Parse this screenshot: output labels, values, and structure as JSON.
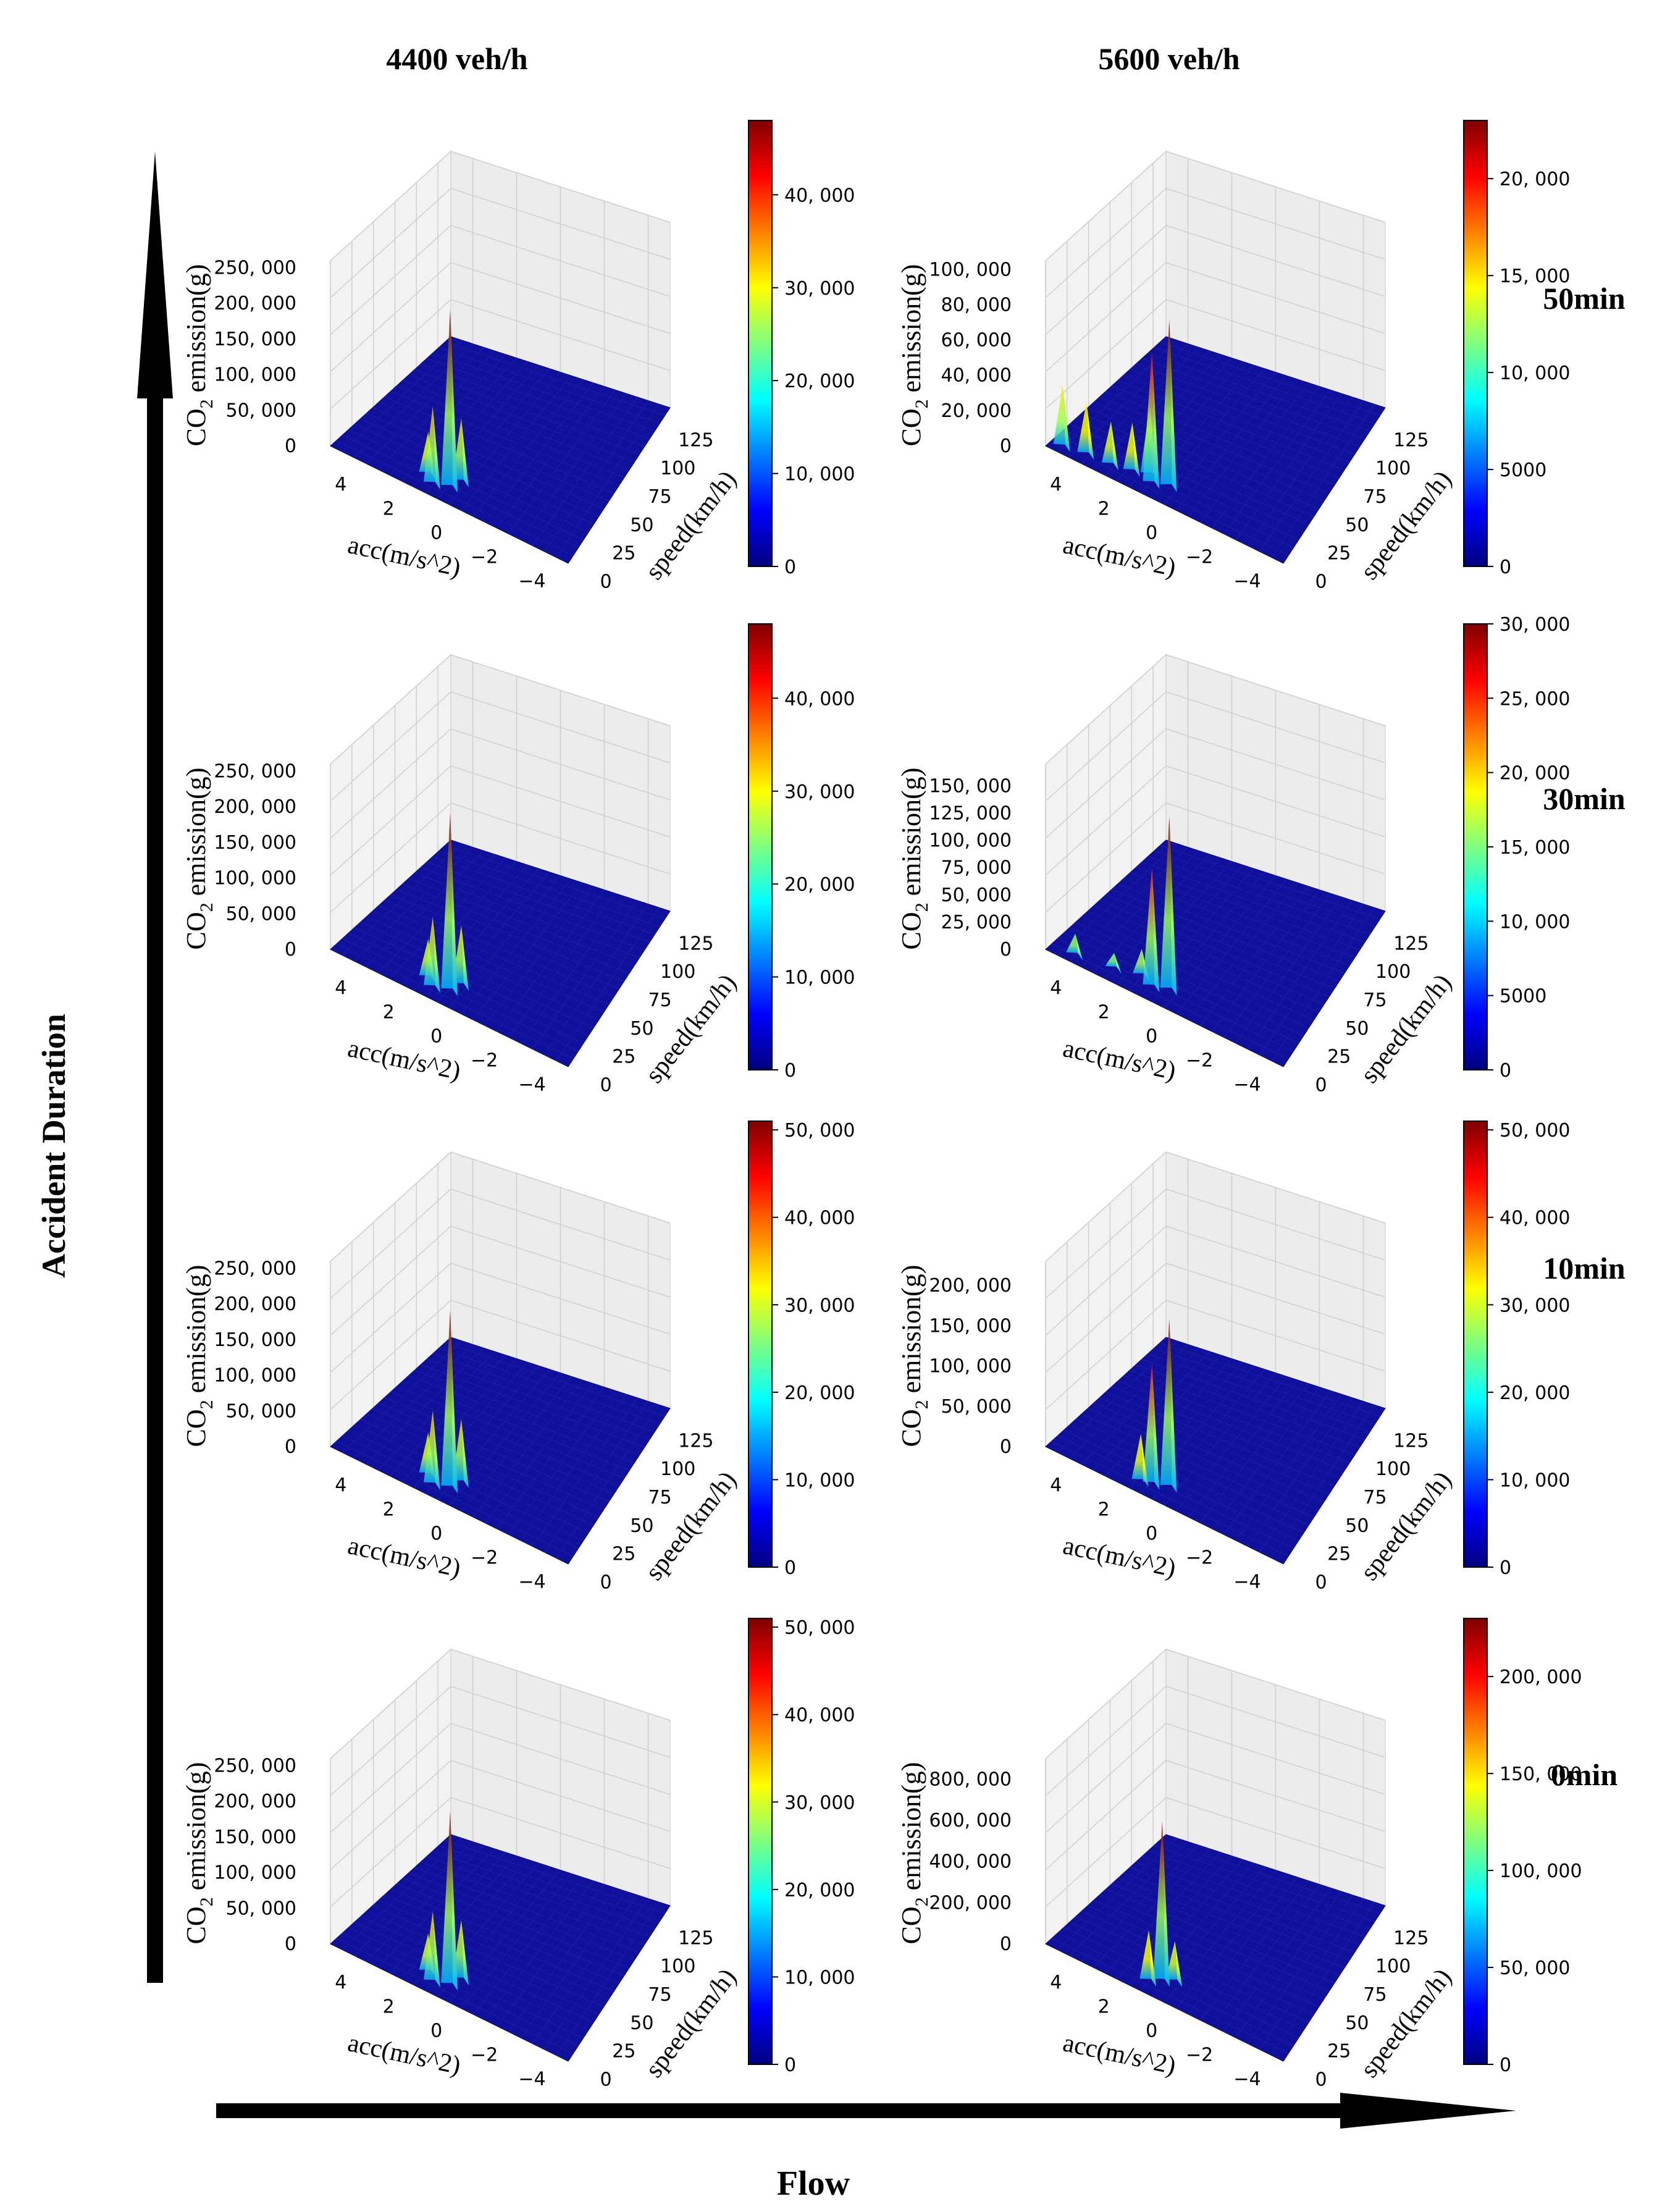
{
  "figure": {
    "column_headers": [
      "4400 veh/h",
      "5600 veh/h"
    ],
    "row_labels": [
      "50min",
      "30min",
      "10min",
      "0min"
    ],
    "y_axis_arrow_label": "Accident Duration",
    "x_axis_arrow_label": "Flow"
  },
  "axis_text": {
    "zlabel_prefix": "CO",
    "zlabel_sub": "2",
    "zlabel_suffix": " emission(g)",
    "xlabel": "acc(m/s^2)",
    "ylabel": "speed(km/h)",
    "acc_ticks": [
      "4",
      "2",
      "0",
      "−2",
      "−4"
    ],
    "speed_ticks": [
      "0",
      "25",
      "50",
      "75",
      "100",
      "125"
    ]
  },
  "colors": {
    "surface_base": "#10119a",
    "colormap": [
      "#00007f",
      "#0000ff",
      "#007fff",
      "#00ffff",
      "#7fff7f",
      "#ffff00",
      "#ff7f00",
      "#ff0000",
      "#7f0000"
    ],
    "pane": "#f2f2f2",
    "grid": "#cfcfcf"
  },
  "chart_data": [
    {
      "type": "surface3d",
      "title": "",
      "flow": "4400 veh/h",
      "duration": "50min",
      "xlabel": "acc(m/s^2)",
      "ylabel": "speed(km/h)",
      "zlabel": "CO2 emission(g)",
      "xlim": [
        -5,
        5
      ],
      "ylim": [
        0,
        140
      ],
      "zlim": [
        0,
        260000
      ],
      "z_ticks": [
        "0",
        "50, 000",
        "100, 000",
        "150, 000",
        "200, 000",
        "250, 000"
      ],
      "colorbar_ticks": [
        "0",
        "10, 000",
        "20, 000",
        "30, 000",
        "40, 000"
      ],
      "colorbar_max": 48000,
      "peaks": [
        {
          "acc": 0.4,
          "speed": 12,
          "z": 250000
        },
        {
          "acc": 1.0,
          "speed": 8,
          "z": 110000
        },
        {
          "acc": 0.2,
          "speed": 20,
          "z": 90000
        },
        {
          "acc": 1.4,
          "speed": 14,
          "z": 60000
        }
      ]
    },
    {
      "type": "surface3d",
      "title": "",
      "flow": "5600 veh/h",
      "duration": "50min",
      "xlabel": "acc(m/s^2)",
      "ylabel": "speed(km/h)",
      "zlabel": "CO2 emission(g)",
      "xlim": [
        -5,
        5
      ],
      "ylim": [
        0,
        140
      ],
      "zlim": [
        0,
        105000
      ],
      "z_ticks": [
        "0",
        "20, 000",
        "40, 000",
        "60, 000",
        "80, 000",
        "100, 000"
      ],
      "colorbar_ticks": [
        "0",
        "5000",
        "10, 000",
        "15, 000",
        "20, 000"
      ],
      "colorbar_max": 23000,
      "peaks": [
        {
          "acc": 0.3,
          "speed": 14,
          "z": 95000
        },
        {
          "acc": 0.9,
          "speed": 10,
          "z": 75000
        },
        {
          "acc": 4.5,
          "speed": 5,
          "z": 35000
        },
        {
          "acc": 3.6,
          "speed": 8,
          "z": 30000
        },
        {
          "acc": 2.6,
          "speed": 9,
          "z": 25000
        },
        {
          "acc": 1.8,
          "speed": 12,
          "z": 28000
        },
        {
          "acc": 1.2,
          "speed": 16,
          "z": 40000
        }
      ]
    },
    {
      "type": "surface3d",
      "title": "",
      "flow": "4400 veh/h",
      "duration": "30min",
      "xlabel": "acc(m/s^2)",
      "ylabel": "speed(km/h)",
      "zlabel": "CO2 emission(g)",
      "xlim": [
        -5,
        5
      ],
      "ylim": [
        0,
        140
      ],
      "zlim": [
        0,
        260000
      ],
      "z_ticks": [
        "0",
        "50, 000",
        "100, 000",
        "150, 000",
        "200, 000",
        "250, 000"
      ],
      "colorbar_ticks": [
        "0",
        "10, 000",
        "20, 000",
        "30, 000",
        "40, 000"
      ],
      "colorbar_max": 48000,
      "peaks": [
        {
          "acc": 0.4,
          "speed": 12,
          "z": 250000
        },
        {
          "acc": 1.0,
          "speed": 8,
          "z": 100000
        },
        {
          "acc": 0.2,
          "speed": 20,
          "z": 85000
        },
        {
          "acc": 1.4,
          "speed": 14,
          "z": 55000
        }
      ]
    },
    {
      "type": "surface3d",
      "title": "",
      "flow": "5600 veh/h",
      "duration": "30min",
      "xlabel": "acc(m/s^2)",
      "ylabel": "speed(km/h)",
      "zlabel": "CO2 emission(g)",
      "xlim": [
        -5,
        5
      ],
      "ylim": [
        0,
        140
      ],
      "zlim": [
        0,
        170000
      ],
      "z_ticks": [
        "0",
        "25, 000",
        "50, 000",
        "75, 000",
        "100, 000",
        "125, 000",
        "150, 000"
      ],
      "colorbar_ticks": [
        "0",
        "5000",
        "10, 000",
        "15, 000",
        "20, 000",
        "25, 000",
        "30, 000"
      ],
      "colorbar_max": 30000,
      "peaks": [
        {
          "acc": 0.3,
          "speed": 14,
          "z": 160000
        },
        {
          "acc": 0.9,
          "speed": 10,
          "z": 110000
        },
        {
          "acc": 4.0,
          "speed": 6,
          "z": 20000
        },
        {
          "acc": 2.5,
          "speed": 10,
          "z": 15000
        },
        {
          "acc": 1.5,
          "speed": 15,
          "z": 25000
        }
      ]
    },
    {
      "type": "surface3d",
      "title": "",
      "flow": "4400 veh/h",
      "duration": "10min",
      "xlabel": "acc(m/s^2)",
      "ylabel": "speed(km/h)",
      "zlabel": "CO2 emission(g)",
      "xlim": [
        -5,
        5
      ],
      "ylim": [
        0,
        140
      ],
      "zlim": [
        0,
        260000
      ],
      "z_ticks": [
        "0",
        "50, 000",
        "100, 000",
        "150, 000",
        "200, 000",
        "250, 000"
      ],
      "colorbar_ticks": [
        "0",
        "10, 000",
        "20, 000",
        "30, 000",
        "40, 000",
        "50, 000"
      ],
      "colorbar_max": 51000,
      "peaks": [
        {
          "acc": 0.4,
          "speed": 12,
          "z": 250000
        },
        {
          "acc": 1.0,
          "speed": 8,
          "z": 105000
        },
        {
          "acc": 0.2,
          "speed": 20,
          "z": 90000
        },
        {
          "acc": 1.4,
          "speed": 14,
          "z": 60000
        }
      ]
    },
    {
      "type": "surface3d",
      "title": "",
      "flow": "5600 veh/h",
      "duration": "10min",
      "xlabel": "acc(m/s^2)",
      "ylabel": "speed(km/h)",
      "zlabel": "CO2 emission(g)",
      "xlim": [
        -5,
        5
      ],
      "ylim": [
        0,
        140
      ],
      "zlim": [
        0,
        230000
      ],
      "z_ticks": [
        "0",
        "50, 000",
        "100, 000",
        "150, 000",
        "200, 000"
      ],
      "colorbar_ticks": [
        "0",
        "10, 000",
        "20, 000",
        "30, 000",
        "40, 000",
        "50, 000"
      ],
      "colorbar_max": 51000,
      "peaks": [
        {
          "acc": 0.3,
          "speed": 14,
          "z": 210000
        },
        {
          "acc": 0.9,
          "speed": 10,
          "z": 150000
        },
        {
          "acc": 1.3,
          "speed": 8,
          "z": 60000
        }
      ]
    },
    {
      "type": "surface3d",
      "title": "",
      "flow": "4400 veh/h",
      "duration": "0min",
      "xlabel": "acc(m/s^2)",
      "ylabel": "speed(km/h)",
      "zlabel": "CO2 emission(g)",
      "xlim": [
        -5,
        5
      ],
      "ylim": [
        0,
        140
      ],
      "zlim": [
        0,
        260000
      ],
      "z_ticks": [
        "0",
        "50, 000",
        "100, 000",
        "150, 000",
        "200, 000",
        "250, 000"
      ],
      "colorbar_ticks": [
        "0",
        "10, 000",
        "20, 000",
        "30, 000",
        "40, 000",
        "50, 000"
      ],
      "colorbar_max": 51000,
      "peaks": [
        {
          "acc": 0.4,
          "speed": 12,
          "z": 245000
        },
        {
          "acc": 1.0,
          "speed": 8,
          "z": 100000
        },
        {
          "acc": 0.2,
          "speed": 20,
          "z": 85000
        },
        {
          "acc": 1.4,
          "speed": 14,
          "z": 55000
        }
      ]
    },
    {
      "type": "surface3d",
      "title": "",
      "flow": "5600 veh/h",
      "duration": "0min",
      "xlabel": "acc(m/s^2)",
      "ylabel": "speed(km/h)",
      "zlabel": "CO2 emission(g)",
      "xlim": [
        -5,
        5
      ],
      "ylim": [
        0,
        140
      ],
      "zlim": [
        0,
        900000
      ],
      "z_ticks": [
        "0",
        "200, 000",
        "400, 000",
        "600, 000",
        "800, 000"
      ],
      "colorbar_ticks": [
        "0",
        "50, 000",
        "100, 000",
        "150, 000",
        "200, 000"
      ],
      "colorbar_max": 230000,
      "peaks": [
        {
          "acc": 0.6,
          "speed": 14,
          "z": 780000
        },
        {
          "acc": 1.0,
          "speed": 9,
          "z": 250000
        },
        {
          "acc": 0.2,
          "speed": 18,
          "z": 200000
        }
      ]
    }
  ]
}
